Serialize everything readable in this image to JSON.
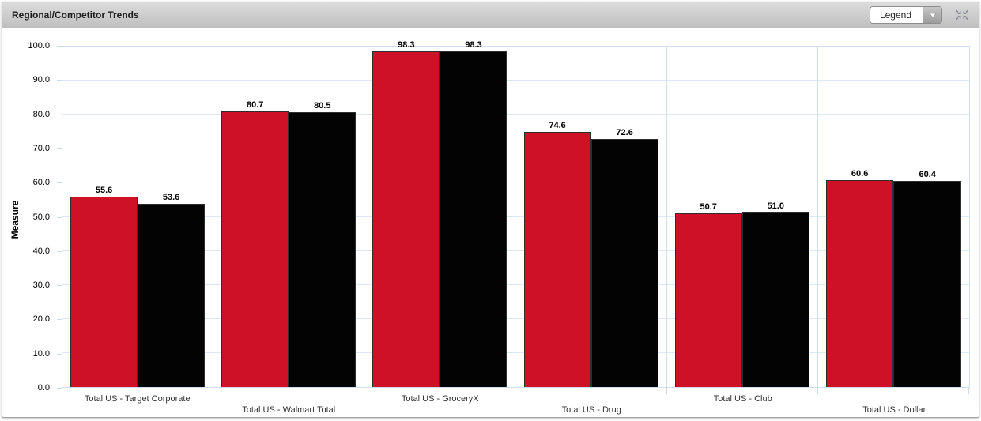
{
  "panel": {
    "title": "Regional/Competitor Trends",
    "legend_label": "Legend"
  },
  "chart_data": {
    "type": "bar",
    "title": "Regional/Competitor Trends",
    "xlabel": "",
    "ylabel": "Measure",
    "ylim": [
      0,
      100
    ],
    "ytick_step": 10,
    "grid": true,
    "legend_position": "collapsed-dropdown-top-right",
    "categories": [
      "Total US - Target Corporate",
      "Total US - Walmart Total",
      "Total US - GroceryX",
      "Total US - Drug",
      "Total US - Club",
      "Total US - Dollar"
    ],
    "series": [
      {
        "color": "#CE1126",
        "values": [
          55.6,
          80.7,
          98.3,
          74.6,
          50.7,
          60.6
        ]
      },
      {
        "color": "#030303",
        "values": [
          53.6,
          80.5,
          98.3,
          72.6,
          51.0,
          60.4
        ]
      }
    ],
    "value_label_decimals": 1,
    "colors": {
      "gridline": "#dde8f5",
      "plot_border": "#cfdff0",
      "bar_border": "#2e2e2e",
      "header_text": "#1c1c1c"
    }
  }
}
